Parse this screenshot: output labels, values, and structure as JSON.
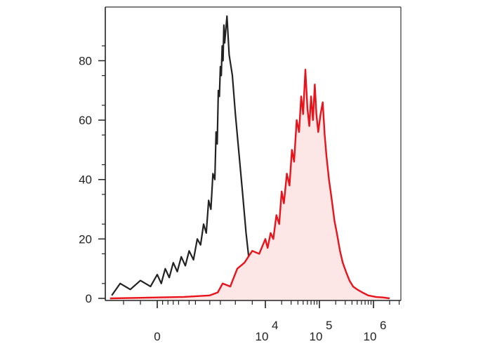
{
  "chart_data": {
    "type": "area",
    "xscale": "biexponential",
    "xlim": [
      -1500,
      2000000
    ],
    "ylim": [
      0,
      95
    ],
    "grid": false,
    "legend": "none",
    "y_ticks": [
      0,
      20,
      40,
      60,
      80
    ],
    "y_tick_labels": [
      "0",
      "20",
      "40",
      "60",
      "80"
    ],
    "x_ticks": [
      {
        "value": 0,
        "base": "0",
        "exp": ""
      },
      {
        "value": 10000,
        "base": "10",
        "exp": "4"
      },
      {
        "value": 100000,
        "base": "10",
        "exp": "5"
      },
      {
        "value": 1000000,
        "base": "10",
        "exp": "6"
      }
    ],
    "series": [
      {
        "color": "#222222",
        "filled": false,
        "points": [
          [
            -1350,
            1
          ],
          [
            -1100,
            5
          ],
          [
            -800,
            3
          ],
          [
            -500,
            6
          ],
          [
            -200,
            4
          ],
          [
            0,
            8
          ],
          [
            150,
            5
          ],
          [
            300,
            10
          ],
          [
            450,
            7
          ],
          [
            600,
            12
          ],
          [
            750,
            9
          ],
          [
            900,
            14
          ],
          [
            1050,
            11
          ],
          [
            1200,
            16
          ],
          [
            1400,
            13
          ],
          [
            1600,
            20
          ],
          [
            1800,
            18
          ],
          [
            2000,
            25
          ],
          [
            2200,
            22
          ],
          [
            2400,
            33
          ],
          [
            2600,
            30
          ],
          [
            2800,
            42
          ],
          [
            3000,
            40
          ],
          [
            3200,
            56
          ],
          [
            3400,
            52
          ],
          [
            3600,
            70
          ],
          [
            3800,
            68
          ],
          [
            4000,
            78
          ],
          [
            4200,
            75
          ],
          [
            4400,
            85
          ],
          [
            4600,
            80
          ],
          [
            4800,
            92
          ],
          [
            5000,
            86
          ],
          [
            5200,
            95
          ],
          [
            5400,
            82
          ],
          [
            5700,
            75
          ],
          [
            6000,
            62
          ],
          [
            6400,
            48
          ],
          [
            6800,
            35
          ],
          [
            7200,
            22
          ],
          [
            7700,
            10
          ],
          [
            8300,
            5
          ],
          [
            9000,
            2
          ],
          [
            10000,
            1
          ],
          [
            13000,
            0.5
          ],
          [
            20000,
            0.8
          ],
          [
            40000,
            0.3
          ],
          [
            100000,
            0.2
          ],
          [
            500000,
            0.1
          ],
          [
            2000000,
            0
          ]
        ]
      },
      {
        "color": "#e8131b",
        "fill": "#fde6e6",
        "filled": true,
        "points": [
          [
            -1400,
            0
          ],
          [
            -500,
            0.2
          ],
          [
            0,
            0.3
          ],
          [
            1000,
            0.5
          ],
          [
            2500,
            1
          ],
          [
            3500,
            2
          ],
          [
            4500,
            5
          ],
          [
            5500,
            4
          ],
          [
            6200,
            10
          ],
          [
            7000,
            12
          ],
          [
            8000,
            16
          ],
          [
            9000,
            15
          ],
          [
            10000,
            20
          ],
          [
            11000,
            17
          ],
          [
            12500,
            22
          ],
          [
            14000,
            20
          ],
          [
            16000,
            28
          ],
          [
            18000,
            25
          ],
          [
            20000,
            36
          ],
          [
            22000,
            32
          ],
          [
            25000,
            42
          ],
          [
            28000,
            38
          ],
          [
            31000,
            50
          ],
          [
            34000,
            46
          ],
          [
            38000,
            60
          ],
          [
            42000,
            56
          ],
          [
            46000,
            68
          ],
          [
            50000,
            62
          ],
          [
            55000,
            77
          ],
          [
            60000,
            64
          ],
          [
            65000,
            58
          ],
          [
            70000,
            68
          ],
          [
            76000,
            60
          ],
          [
            82000,
            72
          ],
          [
            88000,
            62
          ],
          [
            95000,
            56
          ],
          [
            105000,
            62
          ],
          [
            115000,
            66
          ],
          [
            125000,
            55
          ],
          [
            135000,
            48
          ],
          [
            150000,
            40
          ],
          [
            170000,
            33
          ],
          [
            190000,
            26
          ],
          [
            210000,
            22
          ],
          [
            240000,
            16
          ],
          [
            270000,
            12
          ],
          [
            310000,
            9
          ],
          [
            360000,
            6
          ],
          [
            420000,
            4
          ],
          [
            500000,
            3
          ],
          [
            620000,
            2
          ],
          [
            800000,
            1
          ],
          [
            1100000,
            0.5
          ],
          [
            1500000,
            0.3
          ],
          [
            2000000,
            0
          ]
        ]
      }
    ]
  }
}
